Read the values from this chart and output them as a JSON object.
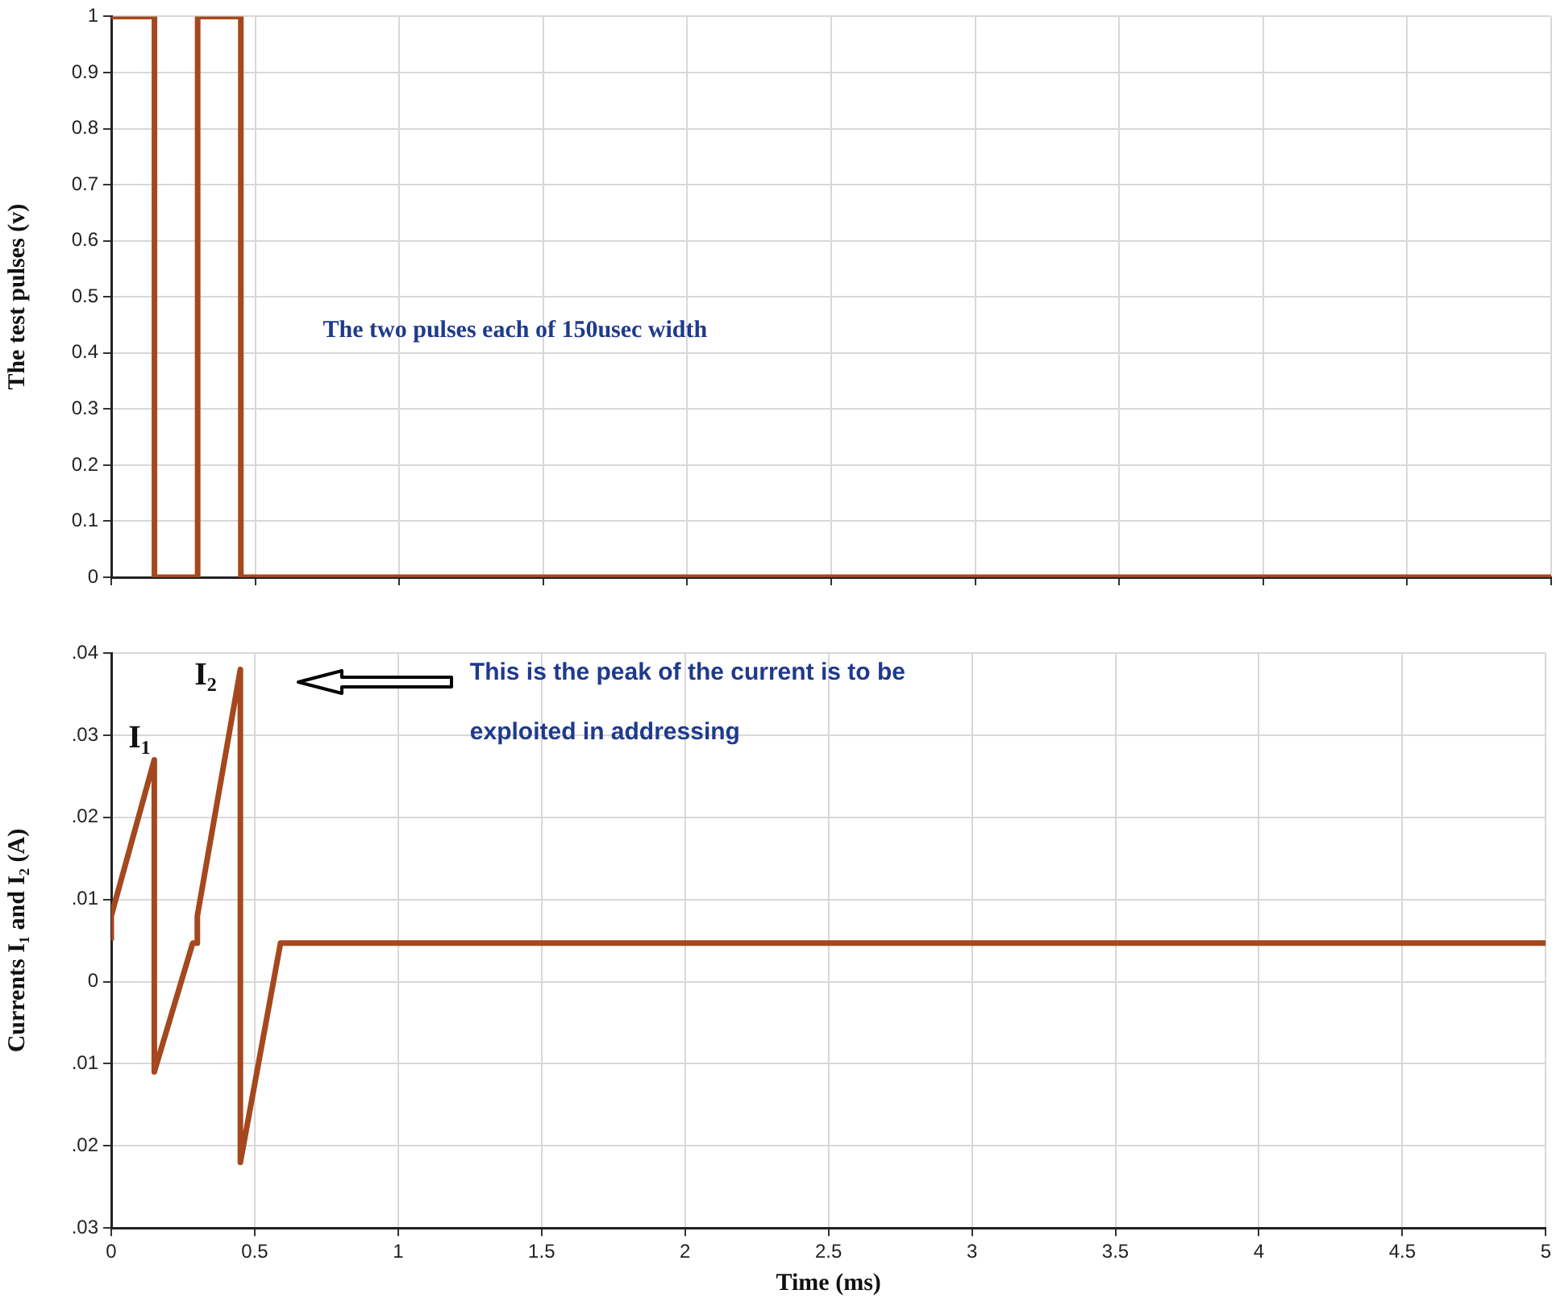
{
  "chart_data": [
    {
      "type": "line",
      "ylabel": "The test pulses (v)",
      "x": [
        0,
        0.15,
        0.15,
        0.3,
        0.3,
        0.45,
        0.45,
        5
      ],
      "series": [
        {
          "color": "#a5481e",
          "values": [
            1,
            1,
            0,
            0,
            1,
            1,
            0,
            0
          ]
        }
      ],
      "xlim": [
        0,
        5
      ],
      "xticks": [
        0,
        0.5,
        1,
        1.5,
        2,
        2.5,
        3,
        3.5,
        4,
        4.5,
        5
      ],
      "ylim": [
        0,
        1
      ],
      "yticks": [
        0,
        0.1,
        0.2,
        0.3,
        0.4,
        0.5,
        0.6,
        0.7,
        0.8,
        0.9,
        1
      ],
      "grid": true,
      "legend": false,
      "marker": "none",
      "line_style": "solid",
      "tick_labels": "y",
      "annotations": [
        "The two pulses each of 150usec width"
      ]
    },
    {
      "type": "line",
      "xlabel": "Time (ms)",
      "ylabel": "Currents I₁ and I₂ (A)",
      "x": [
        0,
        0,
        0.15,
        0.15,
        0.284,
        0.3,
        0.3,
        0.45,
        0.45,
        0.59,
        5
      ],
      "series": [
        {
          "color": "#a5481e",
          "values": [
            0.005,
            0.008,
            0.027,
            -0.011,
            0.0047,
            0.0047,
            0.008,
            0.038,
            -0.022,
            0.0047,
            0.0047
          ]
        }
      ],
      "xlim": [
        0,
        5
      ],
      "xticks": [
        0,
        0.5,
        1,
        1.5,
        2,
        2.5,
        3,
        3.5,
        4,
        4.5,
        5
      ],
      "ylim": [
        -0.03,
        0.04
      ],
      "yticks": [
        {
          "value": -0.03,
          "label": ".03"
        },
        {
          "value": -0.02,
          "label": ".02"
        },
        {
          "value": -0.01,
          "label": ".01"
        },
        0,
        {
          "value": 0.01,
          "label": ".01"
        },
        {
          "value": 0.02,
          "label": ".02"
        },
        {
          "value": 0.03,
          "label": ".03"
        },
        {
          "value": 0.04,
          "label": ".04"
        }
      ],
      "grid": true,
      "legend": false,
      "marker": "none",
      "line_style": "solid",
      "annotations": [
        "I₁",
        "I₂",
        "This is the peak of the current is to be exploited in addressing"
      ]
    }
  ]
}
